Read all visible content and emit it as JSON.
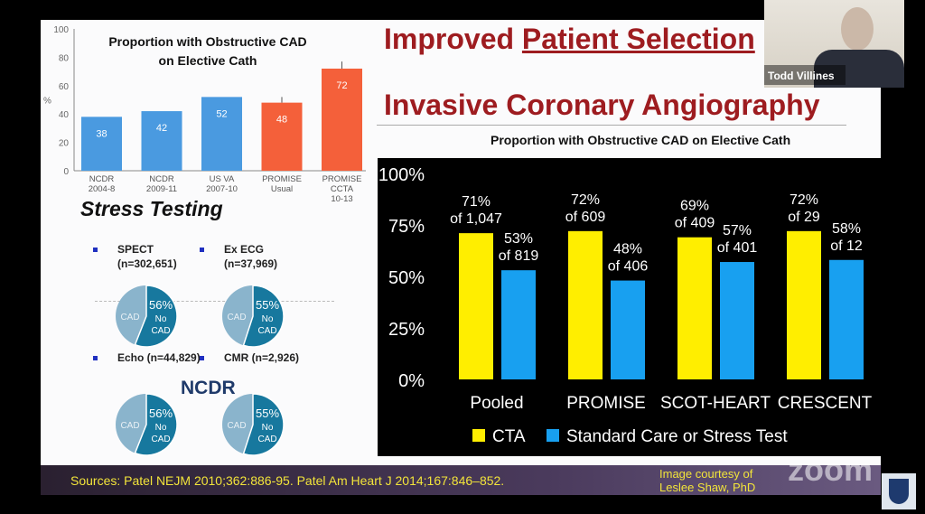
{
  "slide": {
    "title_line1_pre": "Improved ",
    "title_line1_underlined": "Patient Selection",
    "title_line2": "Invasive Coronary Angiography",
    "stress_testing": "Stress Testing",
    "ncdr": "NCDR",
    "pies": [
      {
        "label": "SPECT",
        "n": "(n=302,651)",
        "pct": "56%",
        "no": "No",
        "cad_word": "CAD",
        "cad": "CAD",
        "value": 56
      },
      {
        "label": "Ex ECG",
        "n": "(n=37,969)",
        "pct": "55%",
        "no": "No",
        "cad_word": "CAD",
        "cad": "CAD",
        "value": 55
      },
      {
        "label": "Echo (n=44,829)",
        "n": "",
        "pct": "56%",
        "no": "No",
        "cad_word": "CAD",
        "cad": "CAD",
        "value": 56
      },
      {
        "label": "CMR (n=2,926)",
        "n": "",
        "pct": "55%",
        "no": "No",
        "cad_word": "CAD",
        "cad": "CAD",
        "value": 55
      }
    ],
    "footer": {
      "sources": "Sources:  Patel NEJM 2010;362:886-95.   Patel Am Heart J 2014;167:846–852.",
      "courtesy": "Image courtesy of Leslee Shaw, PhD"
    }
  },
  "video": {
    "participant_name": "Todd Villines",
    "watermark": "zoom"
  },
  "chart_data": [
    {
      "type": "bar",
      "title": "Proportion with Obstructive CAD on Elective Cath",
      "ylabel": "%",
      "ylim": [
        0,
        100
      ],
      "yticks": [
        "0",
        "20",
        "40",
        "60",
        "80",
        "100"
      ],
      "categories": [
        [
          "NCDR",
          "2004-8"
        ],
        [
          "NCDR",
          "2009-11"
        ],
        [
          "US VA",
          "2007-10"
        ],
        [
          "PROMISE",
          "Usual"
        ],
        [
          "PROMISE",
          "CCTA",
          "10-13"
        ]
      ],
      "values": [
        38,
        42,
        52,
        48,
        72
      ],
      "labels": [
        "38",
        "42",
        "52",
        "48",
        "72"
      ],
      "colors": [
        "#4a9ae0",
        "#4a9ae0",
        "#4a9ae0",
        "#f4603a",
        "#f4603a"
      ]
    },
    {
      "type": "bar",
      "title": "Proportion with Obstructive CAD on Elective Cath",
      "ylim": [
        0,
        100
      ],
      "yticks": [
        "0%",
        "25%",
        "50%",
        "75%",
        "100%"
      ],
      "categories": [
        "Pooled",
        "PROMISE",
        "SCOT-HEART",
        "CRESCENT"
      ],
      "series": [
        {
          "name": "CTA",
          "color": "#ffee00",
          "values": [
            71,
            72,
            69,
            72
          ],
          "labels": [
            [
              "71%",
              "of 1,047"
            ],
            [
              "72%",
              "of 609"
            ],
            [
              "69%",
              "of 409"
            ],
            [
              "72%",
              "of 29"
            ]
          ]
        },
        {
          "name": "Standard Care or Stress Test",
          "color": "#18a0f0",
          "values": [
            53,
            48,
            57,
            58
          ],
          "labels": [
            [
              "53%",
              "of 819"
            ],
            [
              "48%",
              "of 406"
            ],
            [
              "57%",
              "of 401"
            ],
            [
              "58%",
              "of 12"
            ]
          ]
        }
      ],
      "legend": "bottom"
    }
  ]
}
